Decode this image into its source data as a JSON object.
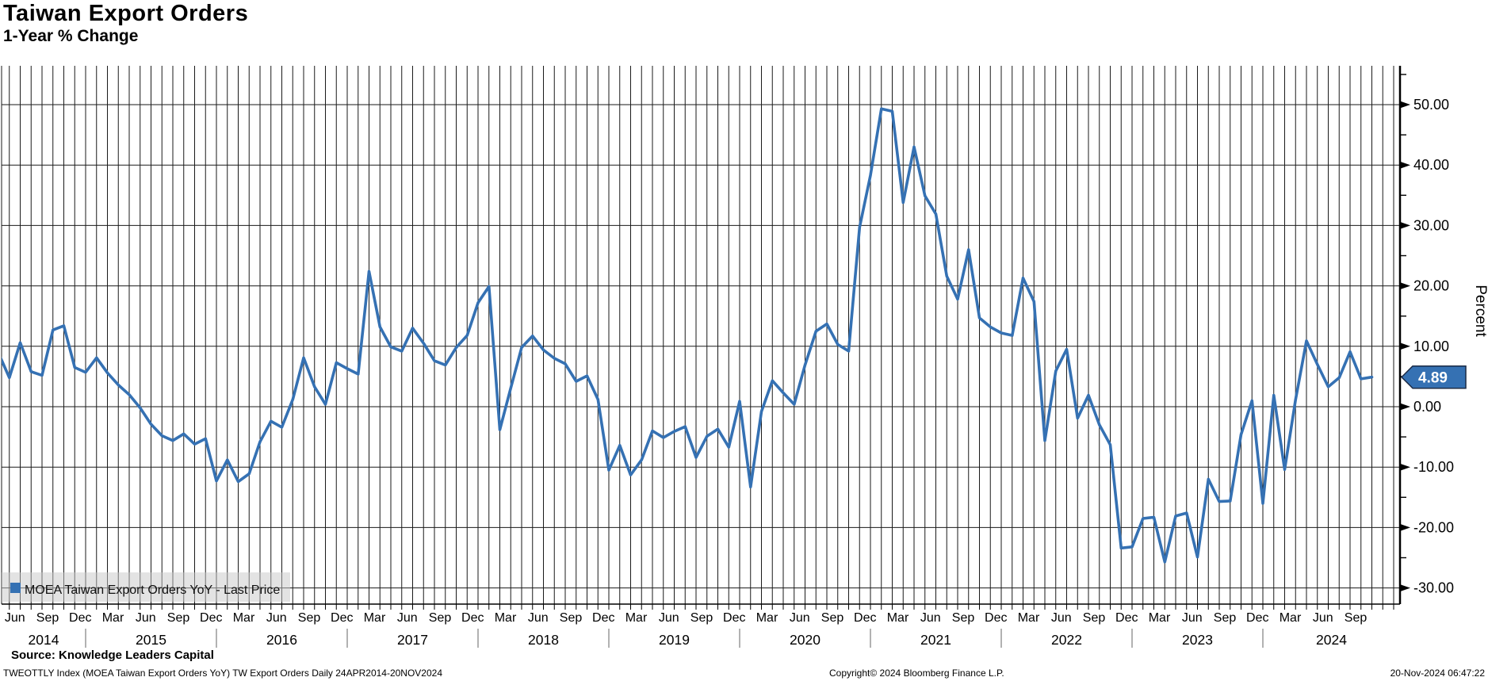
{
  "header": {
    "title": "Taiwan Export Orders",
    "subtitle": "1-Year % Change"
  },
  "chart_data": {
    "type": "line",
    "title": "Taiwan Export Orders",
    "subtitle": "1-Year % Change",
    "series_name": "MOEA Taiwan Export Orders YoY",
    "ylabel": "Percent",
    "frequency": "monthly",
    "start_month": "2014-04",
    "end_month": "2024-10",
    "last_price": "4.89",
    "line_color": "#3571b3",
    "badge_color": "#3571b3",
    "badge_border_color": "#1c2b45",
    "grid_color": "#1a1a1a",
    "ylim": [
      -32.8,
      56.4
    ],
    "yticks_major": [
      50,
      40,
      30,
      20,
      10,
      0,
      -10,
      -20,
      -30
    ],
    "ytick_labels": [
      "50.00",
      "40.00",
      "30.00",
      "20.00",
      "10.00",
      "0.00",
      "-10.00",
      "-20.00",
      "-30.00"
    ],
    "yticks_minor": [
      55,
      45,
      35,
      25,
      15,
      5,
      -5,
      -15,
      -25
    ],
    "month_label_cycle": [
      "Jun",
      "Sep",
      "Dec",
      "Mar"
    ],
    "years": [
      "2014",
      "2015",
      "2016",
      "2017",
      "2018",
      "2019",
      "2020",
      "2021",
      "2022",
      "2023",
      "2024"
    ],
    "grid": true,
    "legend_position": "bottom-left",
    "values": [
      8.9,
      4.8,
      10.6,
      5.8,
      5.2,
      12.7,
      13.4,
      6.5,
      5.7,
      8.1,
      5.6,
      3.6,
      2.0,
      -0.2,
      -2.9,
      -4.8,
      -5.6,
      -4.5,
      -6.2,
      -5.3,
      -12.3,
      -8.8,
      -12.4,
      -11.1,
      -5.8,
      -2.4,
      -3.4,
      1.2,
      8.1,
      3.3,
      0.4,
      7.3,
      6.3,
      5.4,
      22.4,
      13.2,
      9.9,
      9.2,
      13.0,
      10.5,
      7.6,
      6.9,
      9.8,
      11.8,
      17.2,
      19.9,
      -3.8,
      3.1,
      9.8,
      11.7,
      9.4,
      8.0,
      7.1,
      4.2,
      5.1,
      1.2,
      -10.5,
      -6.4,
      -11.3,
      -8.8,
      -4.0,
      -5.1,
      -4.1,
      -3.3,
      -8.4,
      -4.9,
      -3.7,
      -6.7,
      0.9,
      -13.3,
      -0.8,
      4.3,
      2.3,
      0.4,
      6.9,
      12.5,
      13.7,
      10.3,
      9.2,
      29.7,
      38.3,
      49.3,
      48.9,
      33.8,
      43.0,
      34.9,
      31.9,
      21.6,
      17.8,
      26.0,
      14.7,
      13.2,
      12.2,
      11.8,
      21.3,
      17.4,
      -5.6,
      5.9,
      9.5,
      -1.9,
      1.9,
      -3.0,
      -6.3,
      -23.4,
      -23.2,
      -18.5,
      -18.3,
      -25.7,
      -18.1,
      -17.6,
      -24.9,
      -12.0,
      -15.7,
      -15.6,
      -4.6,
      1.0,
      -16.0,
      1.9,
      -10.4,
      1.2,
      10.9,
      7.0,
      3.3,
      4.8,
      9.1,
      4.6,
      4.89
    ]
  },
  "legend": {
    "label": "MOEA Taiwan Export Orders YoY - Last Price",
    "marker_color": "#3571b3"
  },
  "source_line": "Source: Knowledge Leaders Capital",
  "footer": {
    "left": "TWEOTTLY Index (MOEA Taiwan Export Orders YoY) TW Export Orders  Daily 24APR2014-20NOV2024",
    "center": "Copyright© 2024 Bloomberg Finance L.P.",
    "right": "20-Nov-2024 06:47:22"
  }
}
